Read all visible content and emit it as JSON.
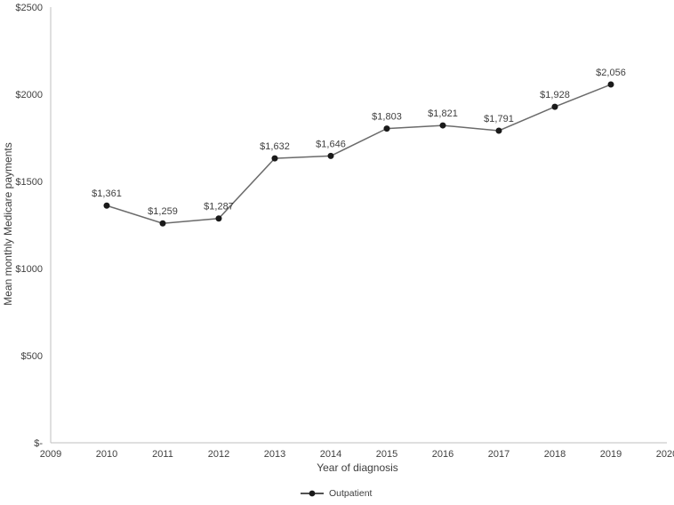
{
  "chart_data": {
    "type": "line",
    "title": "",
    "xlabel": "Year of diagnosis",
    "ylabel": "Mean monthly Medicare payments",
    "x": [
      2010,
      2011,
      2012,
      2013,
      2014,
      2015,
      2016,
      2017,
      2018,
      2019
    ],
    "series": [
      {
        "name": "Outpatient",
        "values": [
          1361,
          1259,
          1287,
          1632,
          1646,
          1803,
          1821,
          1791,
          1928,
          2056
        ],
        "point_labels": [
          "$1,361",
          "$1,259",
          "$1,287",
          "$1,632",
          "$1,646",
          "$1,803",
          "$1,821",
          "$1,791",
          "$1,928",
          "$2,056"
        ]
      }
    ],
    "x_ticks": [
      "2009",
      "2010",
      "2011",
      "2012",
      "2013",
      "2014",
      "2015",
      "2016",
      "2017",
      "2018",
      "2019",
      "2020"
    ],
    "x_range": [
      2009,
      2020
    ],
    "y_ticks": [
      {
        "value": 0,
        "label": "$-"
      },
      {
        "value": 500,
        "label": "$500"
      },
      {
        "value": 1000,
        "label": "$1000"
      },
      {
        "value": 1500,
        "label": "$1500"
      },
      {
        "value": 2000,
        "label": "$2000"
      },
      {
        "value": 2500,
        "label": "$2500"
      }
    ],
    "ylim": [
      0,
      2500
    ],
    "grid": false,
    "legend_position": "bottom-center"
  },
  "colors": {
    "axis_line": "#bfbfbf",
    "series_line": "#6b6b6b",
    "marker_fill": "#1a1a1a",
    "tick_text": "#404040",
    "label_text": "#404040"
  }
}
